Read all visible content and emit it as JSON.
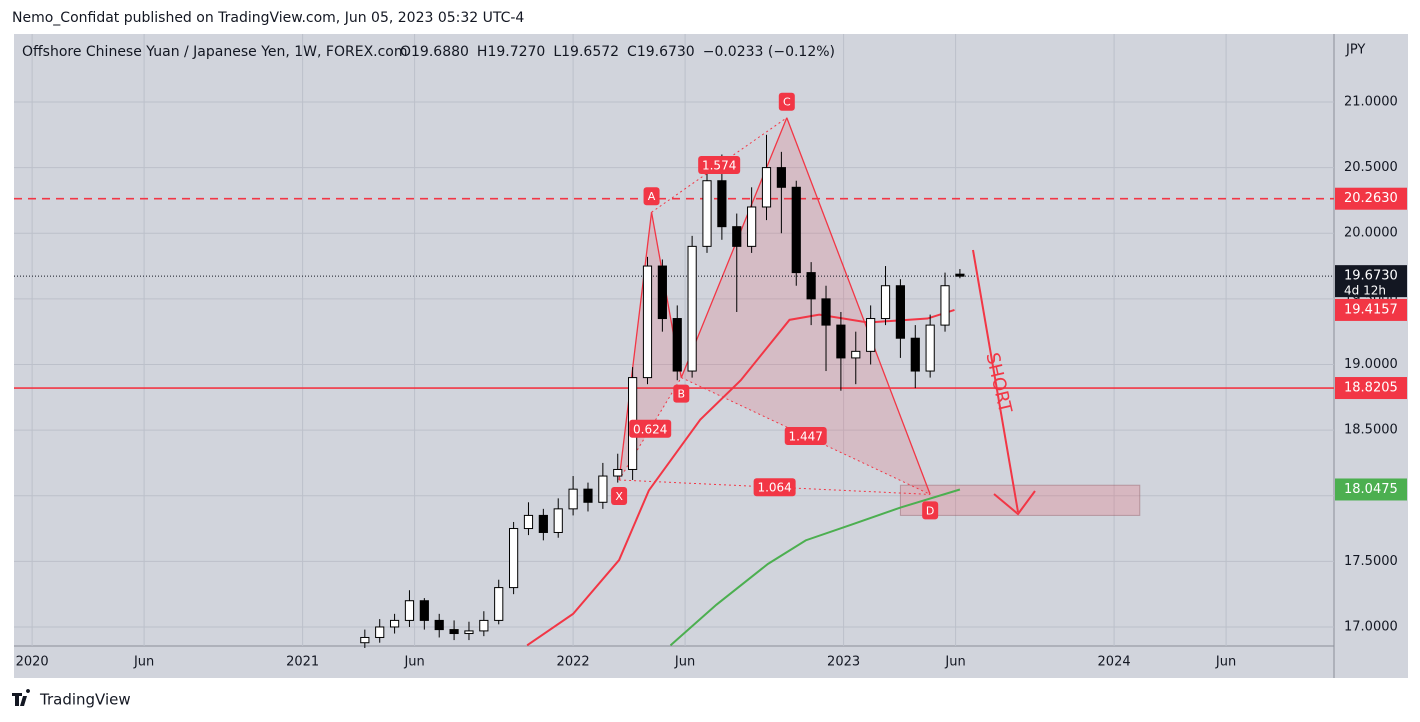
{
  "page_header": "Nemo_Confidat published on TradingView.com, Jun 05, 2023 05:32 UTC-4",
  "footer": "TradingView",
  "chart_data": {
    "type": "candlestick",
    "title": "Offshore Chinese Yuan / Japanese Yen, 1W, FOREX.com",
    "ohlc_text": [
      "O19.6880",
      "H19.7270",
      "L19.6572",
      "C19.6730"
    ],
    "change_text": "−0.0233 (−0.12%)",
    "axis_unit": "JPY",
    "xlim": [
      2019.933,
      2024.813
    ],
    "xticks": [
      2020,
      {
        "value": 2020.414,
        "label": "Jun"
      },
      2021,
      {
        "value": 2021.414,
        "label": "Jun"
      },
      2022,
      {
        "value": 2022.414,
        "label": "Jun"
      },
      2023,
      {
        "value": 2023.414,
        "label": "Jun"
      },
      2024,
      {
        "value": 2024.414,
        "label": "Jun"
      }
    ],
    "ylim": [
      16.855,
      21.518
    ],
    "yticks": [
      {
        "value": 17,
        "label": "17.0000"
      },
      {
        "value": 17.5,
        "label": "17.5000"
      },
      {
        "value": 18,
        "label": "18.0000"
      },
      {
        "value": 18.5,
        "label": "18.5000"
      },
      {
        "value": 19,
        "label": "19.0000"
      },
      {
        "value": 19.5,
        "label": "19.5000"
      },
      {
        "value": 20,
        "label": "20.0000"
      },
      {
        "value": 20.5,
        "label": "20.5000"
      },
      {
        "value": 21,
        "label": "21.0000"
      }
    ],
    "grid": true,
    "x": [
      2021.23,
      2021.285,
      2021.34,
      2021.395,
      2021.45,
      2021.505,
      2021.56,
      2021.615,
      2021.67,
      2021.725,
      2021.78,
      2021.835,
      2021.89,
      2021.945,
      2022.0,
      2022.055,
      2022.11,
      2022.165,
      2022.22,
      2022.275,
      2022.33,
      2022.385,
      2022.44,
      2022.495,
      2022.55,
      2022.605,
      2022.66,
      2022.715,
      2022.77,
      2022.825,
      2022.88,
      2022.935,
      2022.99,
      2023.045,
      2023.1,
      2023.155,
      2023.21,
      2023.265,
      2023.32,
      2023.375,
      2023.43
    ],
    "open": [
      16.88,
      16.92,
      17.0,
      17.05,
      17.2,
      17.05,
      16.98,
      16.95,
      16.97,
      17.05,
      17.3,
      17.75,
      17.85,
      17.72,
      17.9,
      18.05,
      17.95,
      18.15,
      18.2,
      18.9,
      19.75,
      19.35,
      18.95,
      19.9,
      20.4,
      20.05,
      19.9,
      20.2,
      20.5,
      20.35,
      19.7,
      19.5,
      19.3,
      19.05,
      19.1,
      19.35,
      19.6,
      19.2,
      18.95,
      19.3,
      19.688
    ],
    "high": [
      16.98,
      17.06,
      17.1,
      17.28,
      17.22,
      17.1,
      17.05,
      17.04,
      17.12,
      17.36,
      17.8,
      17.95,
      17.9,
      17.98,
      18.15,
      18.1,
      18.25,
      18.32,
      18.98,
      19.82,
      19.8,
      19.45,
      19.98,
      20.5,
      20.6,
      20.15,
      20.35,
      20.75,
      20.62,
      20.4,
      19.78,
      19.6,
      19.4,
      19.25,
      19.45,
      19.75,
      19.65,
      19.3,
      19.38,
      19.7,
      19.727
    ],
    "low": [
      16.84,
      16.88,
      16.95,
      17.0,
      16.98,
      16.92,
      16.9,
      16.9,
      16.93,
      17.02,
      17.25,
      17.7,
      17.66,
      17.68,
      17.85,
      17.88,
      17.9,
      18.1,
      18.12,
      18.85,
      19.25,
      18.88,
      18.9,
      19.85,
      19.95,
      19.4,
      19.85,
      20.1,
      20.0,
      19.6,
      19.3,
      18.95,
      18.8,
      18.85,
      19.0,
      19.3,
      19.05,
      18.82,
      18.9,
      19.25,
      19.6572
    ],
    "close": [
      16.92,
      17.0,
      17.05,
      17.2,
      17.05,
      16.98,
      16.95,
      16.97,
      17.05,
      17.3,
      17.75,
      17.85,
      17.72,
      17.9,
      18.05,
      17.95,
      18.15,
      18.2,
      18.9,
      19.75,
      19.35,
      18.95,
      19.9,
      20.4,
      20.05,
      19.9,
      20.2,
      20.5,
      20.35,
      19.7,
      19.5,
      19.3,
      19.05,
      19.1,
      19.35,
      19.6,
      19.2,
      18.95,
      19.3,
      19.6,
      19.673
    ],
    "levels": [
      {
        "value": 20.263,
        "label": "20.2630",
        "color": "#f23645",
        "style": "dashed"
      },
      {
        "value": 18.8205,
        "label": "18.8205",
        "color": "#f23645",
        "style": "solid"
      },
      {
        "value": 19.673,
        "label": "19.6730",
        "sub_label": "4d 12h",
        "color": "#131722",
        "style": "dotted"
      }
    ],
    "series": [
      {
        "name": "MA red",
        "color": "#f23645",
        "last_label": "19.4157",
        "x": [
          2021.83,
          2022.0,
          2022.17,
          2022.28,
          2022.47,
          2022.62,
          2022.8,
          2022.91,
          2023.09,
          2023.31,
          2023.41
        ],
        "values": [
          16.86,
          17.1,
          17.51,
          18.04,
          18.58,
          18.88,
          19.34,
          19.38,
          19.32,
          19.35,
          19.4157
        ]
      },
      {
        "name": "MA green",
        "color": "#4caf50",
        "last_label": "18.0475",
        "x": [
          2022.36,
          2022.53,
          2022.72,
          2022.86,
          2023.03,
          2023.21,
          2023.43
        ],
        "values": [
          16.86,
          17.17,
          17.48,
          17.66,
          17.78,
          17.91,
          18.0475
        ]
      }
    ],
    "pattern": {
      "points": [
        {
          "name": "X",
          "x": 2022.17,
          "y": 18.12
        },
        {
          "name": "A",
          "x": 2022.29,
          "y": 20.16
        },
        {
          "name": "B",
          "x": 2022.4,
          "y": 18.9
        },
        {
          "name": "C",
          "x": 2022.79,
          "y": 20.88
        },
        {
          "name": "D",
          "x": 2023.32,
          "y": 18.01
        }
      ],
      "ratios": [
        "0.624",
        "1.574",
        "1.447",
        "1.064"
      ]
    },
    "zone": {
      "top": 18.08,
      "bottom": 17.85,
      "x": [
        2023.21,
        2024.095
      ]
    },
    "annotation": "SHORT"
  }
}
